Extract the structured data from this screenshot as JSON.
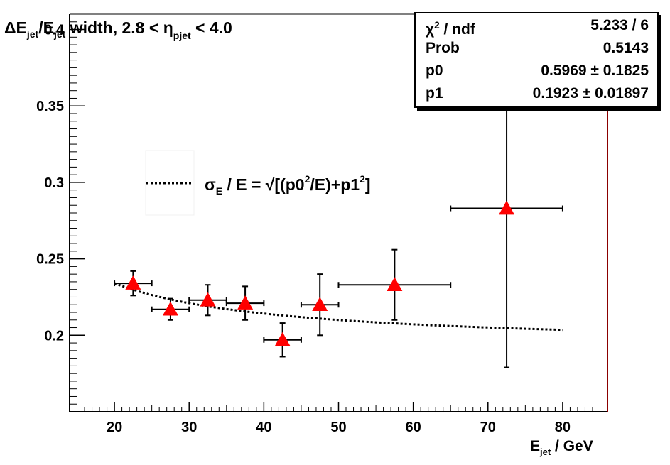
{
  "chart_data": {
    "type": "scatter",
    "title": {
      "delta": "Δ",
      "num": "E",
      "num_sub": "jet",
      "slash": "/",
      "den": "E",
      "den_sub": "jet",
      "middle": " width, 2.8 < ",
      "eta": "η",
      "eta_sub": "pjet",
      "tail": " < 4.0"
    },
    "xlabel": {
      "main": "E",
      "sub": "jet",
      "unit": " / GeV"
    },
    "ylabel": "",
    "xlim": [
      14,
      86
    ],
    "ylim": [
      0.15,
      0.41
    ],
    "x_ticks": [
      20,
      30,
      40,
      50,
      60,
      70,
      80
    ],
    "x_tick_labels": [
      "20",
      "30",
      "40",
      "50",
      "60",
      "70",
      "80"
    ],
    "y_ticks": [
      0.2,
      0.25,
      0.3,
      0.35,
      0.4
    ],
    "y_tick_labels": [
      "0.2",
      "0.25",
      "0.3",
      "0.35",
      "0.4"
    ],
    "points": [
      {
        "x": 22.5,
        "xerr": 2.5,
        "y": 0.234,
        "yerr": 0.008
      },
      {
        "x": 27.5,
        "xerr": 2.5,
        "y": 0.217,
        "yerr": 0.007
      },
      {
        "x": 32.5,
        "xerr": 2.5,
        "y": 0.223,
        "yerr": 0.01
      },
      {
        "x": 37.5,
        "xerr": 2.5,
        "y": 0.221,
        "yerr": 0.011
      },
      {
        "x": 42.5,
        "xerr": 2.5,
        "y": 0.197,
        "yerr": 0.011
      },
      {
        "x": 47.5,
        "xerr": 2.5,
        "y": 0.22,
        "yerr": 0.02
      },
      {
        "x": 57.5,
        "xerr": 7.5,
        "y": 0.233,
        "yerr": 0.023
      },
      {
        "x": 72.5,
        "xerr": 7.5,
        "y": 0.283,
        "yerr": 0.104
      }
    ],
    "fit": {
      "p0": 0.5969,
      "p1": 0.1923,
      "x_range": [
        20,
        80
      ],
      "style": "dotted"
    },
    "legend": {
      "placement": "upper-left",
      "sigma": "σ",
      "sigma_sub": "E",
      "mid": " / E = √[(p0",
      "sup1": "2",
      "mid2": "/E)+p1",
      "sup2": "2",
      "end": "]"
    },
    "grid": false,
    "marker_color": "#ff0000",
    "frame_right_color": "#8b0000"
  },
  "stats": [
    {
      "label_main": "χ",
      "label_sup": "2",
      "label_rest": " / ndf",
      "value": "5.233 / 6"
    },
    {
      "label_main": "Prob",
      "label_sup": "",
      "label_rest": "",
      "value": "0.5143"
    },
    {
      "label_main": "p0",
      "label_sup": "",
      "label_rest": "",
      "value": "0.5969 ± 0.1825"
    },
    {
      "label_main": "p1",
      "label_sup": "",
      "label_rest": "",
      "value": "0.1923 ± 0.01897"
    }
  ]
}
